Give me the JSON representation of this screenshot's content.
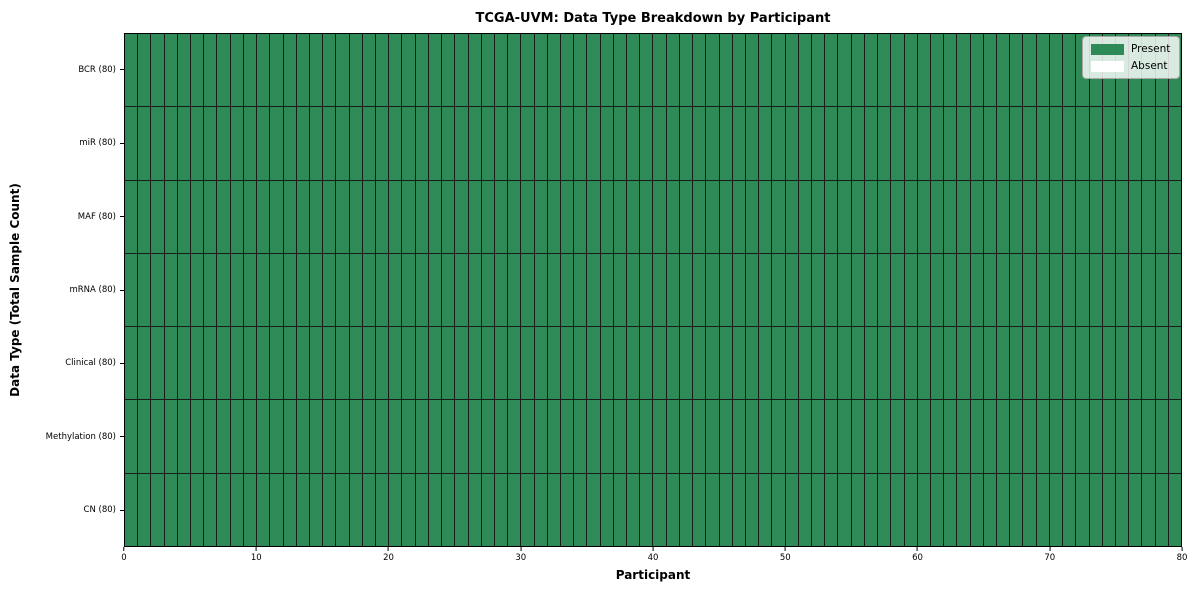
{
  "chart_data": {
    "type": "heatmap",
    "title": "TCGA-UVM: Data Type Breakdown by Participant",
    "xlabel": "Participant",
    "ylabel": "Data Type (Total Sample Count)",
    "x_range": [
      0,
      80
    ],
    "x_ticks": [
      "0",
      "10",
      "20",
      "30",
      "40",
      "50",
      "60",
      "70",
      "80"
    ],
    "participants": 80,
    "grid": "cell borders on, dark edges",
    "rows": [
      {
        "label": "BCR (80)",
        "total": 80,
        "present_count": 80,
        "absent_count": 0
      },
      {
        "label": "miR (80)",
        "total": 80,
        "present_count": 80,
        "absent_count": 0
      },
      {
        "label": "MAF (80)",
        "total": 80,
        "present_count": 80,
        "absent_count": 0
      },
      {
        "label": "mRNA (80)",
        "total": 80,
        "present_count": 80,
        "absent_count": 0
      },
      {
        "label": "Clinical (80)",
        "total": 80,
        "present_count": 80,
        "absent_count": 0
      },
      {
        "label": "Methylation (80)",
        "total": 80,
        "present_count": 80,
        "absent_count": 0
      },
      {
        "label": "CN (80)",
        "total": 80,
        "present_count": 80,
        "absent_count": 0
      }
    ],
    "all_cells_present": true,
    "colors": {
      "present": "#2e8b57",
      "absent": "#ffffff",
      "cell_edge": "#1b1b1b",
      "axes_border": "#000000"
    },
    "legend": {
      "position": "upper right",
      "entries": [
        {
          "label": "Present",
          "color": "#2e8b57"
        },
        {
          "label": "Absent",
          "color": "#ffffff"
        }
      ]
    }
  }
}
